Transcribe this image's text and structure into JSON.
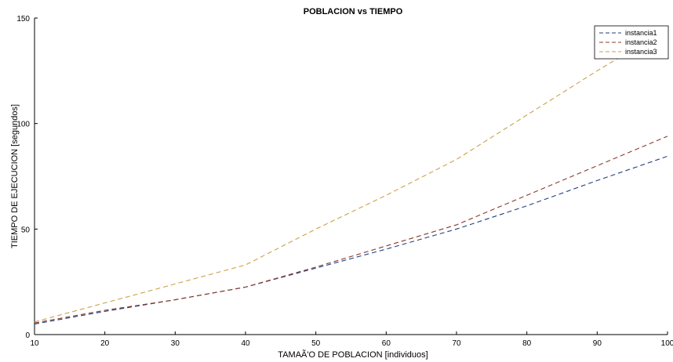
{
  "chart_data": {
    "type": "line",
    "title": "POBLACION vs TIEMPO",
    "xlabel": "TAMAÃ'O DE POBLACION [individuos]",
    "ylabel": "TIEMPO DE EJECUCION [segundos]",
    "xlim": [
      10,
      100
    ],
    "ylim": [
      0,
      150
    ],
    "x_ticks": [
      10,
      20,
      30,
      40,
      50,
      60,
      70,
      80,
      90,
      100
    ],
    "y_ticks": [
      0,
      50,
      100,
      150
    ],
    "grid": false,
    "legend_position": "top-right",
    "x": [
      10,
      20,
      30,
      40,
      50,
      60,
      70,
      80,
      90,
      100
    ],
    "series": [
      {
        "name": "instancia1",
        "color": "#1f3f7f",
        "values": [
          5,
          11,
          16.5,
          22.5,
          31.5,
          40.5,
          50,
          61,
          73,
          84.5
        ]
      },
      {
        "name": "instancia2",
        "color": "#8b3a2b",
        "values": [
          5.5,
          11.5,
          16.5,
          22.5,
          32,
          42,
          52,
          66,
          80,
          94
        ]
      },
      {
        "name": "instancia3",
        "color": "#c9a24a",
        "values": [
          6,
          15,
          24,
          33,
          50,
          66,
          83,
          104,
          125,
          145
        ]
      }
    ]
  }
}
